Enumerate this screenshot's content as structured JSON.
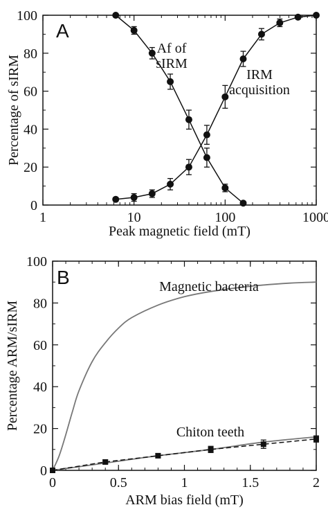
{
  "chart_data": [
    {
      "type": "line",
      "panel_label": "A",
      "xlabel": "Peak magnetic field (mT)",
      "ylabel": "Percentage  of  sIRM",
      "xscale": "log",
      "xlim": [
        1,
        1000
      ],
      "ylim": [
        0,
        100
      ],
      "x_ticks": [
        1,
        10,
        100,
        1000
      ],
      "x_tick_labels": [
        "1",
        "10",
        "100",
        "1000"
      ],
      "y_ticks": [
        0,
        20,
        40,
        60,
        80,
        100
      ],
      "y_tick_labels": [
        "0",
        "20",
        "40",
        "60",
        "80",
        "100"
      ],
      "grid": false,
      "series": [
        {
          "label_lines": [
            "Af of",
            "sIRM"
          ],
          "color": "#111111",
          "marker": "circle",
          "x": [
            6.3,
            10,
            15.8,
            25,
            40,
            63,
            100,
            158
          ],
          "y": [
            100,
            92,
            80,
            65,
            45,
            25,
            9,
            1
          ],
          "err": [
            0,
            2,
            3,
            4,
            5,
            5,
            2,
            1
          ]
        },
        {
          "label_lines": [
            "IRM",
            "acquisition"
          ],
          "color": "#111111",
          "marker": "circle",
          "x": [
            6.3,
            10,
            15.8,
            25,
            40,
            63,
            100,
            158,
            251,
            398,
            631,
            1000
          ],
          "y": [
            3,
            4,
            6,
            11,
            20,
            37,
            57,
            77,
            90,
            96,
            99,
            100
          ],
          "err": [
            1,
            2,
            2,
            3,
            4,
            5,
            6,
            4,
            3,
            2,
            1,
            0
          ]
        }
      ]
    },
    {
      "type": "line",
      "panel_label": "B",
      "xlabel": "ARM bias field (mT)",
      "ylabel": "Percentage  ARM/sIRM",
      "xscale": "linear",
      "xlim": [
        0,
        2
      ],
      "ylim": [
        0,
        100
      ],
      "x_ticks": [
        0,
        0.5,
        1,
        1.5,
        2
      ],
      "x_tick_labels": [
        "0",
        "0.5",
        "1",
        "1.5",
        "2"
      ],
      "y_ticks": [
        0,
        20,
        40,
        60,
        80,
        100
      ],
      "y_tick_labels": [
        "0",
        "20",
        "40",
        "60",
        "80",
        "100"
      ],
      "grid": false,
      "series": [
        {
          "label": "Magnetic bacteria",
          "color": "#777777",
          "style": "solid",
          "x": [
            0,
            0.05,
            0.1,
            0.15,
            0.2,
            0.3,
            0.4,
            0.5,
            0.6,
            0.8,
            1.0,
            1.2,
            1.5,
            1.8,
            2.0
          ],
          "y": [
            0,
            7,
            17,
            28,
            38,
            52,
            61,
            68,
            73,
            79,
            83,
            85.5,
            88,
            89.5,
            90
          ]
        },
        {
          "label": "Chiton teeth",
          "color": "#777777",
          "style": "solid",
          "x": [
            0,
            0.4,
            0.8,
            1.2,
            1.6,
            2.0
          ],
          "y": [
            0,
            3.5,
            7,
            10,
            13.5,
            16
          ]
        },
        {
          "label": "",
          "color": "#111111",
          "style": "dashed",
          "marker": "square",
          "x": [
            0,
            0.4,
            0.8,
            1.2,
            1.6,
            2.0
          ],
          "y": [
            0,
            4,
            7,
            10,
            12.5,
            15
          ],
          "err": [
            0,
            1,
            1,
            1.5,
            2,
            1.5
          ]
        }
      ]
    }
  ]
}
